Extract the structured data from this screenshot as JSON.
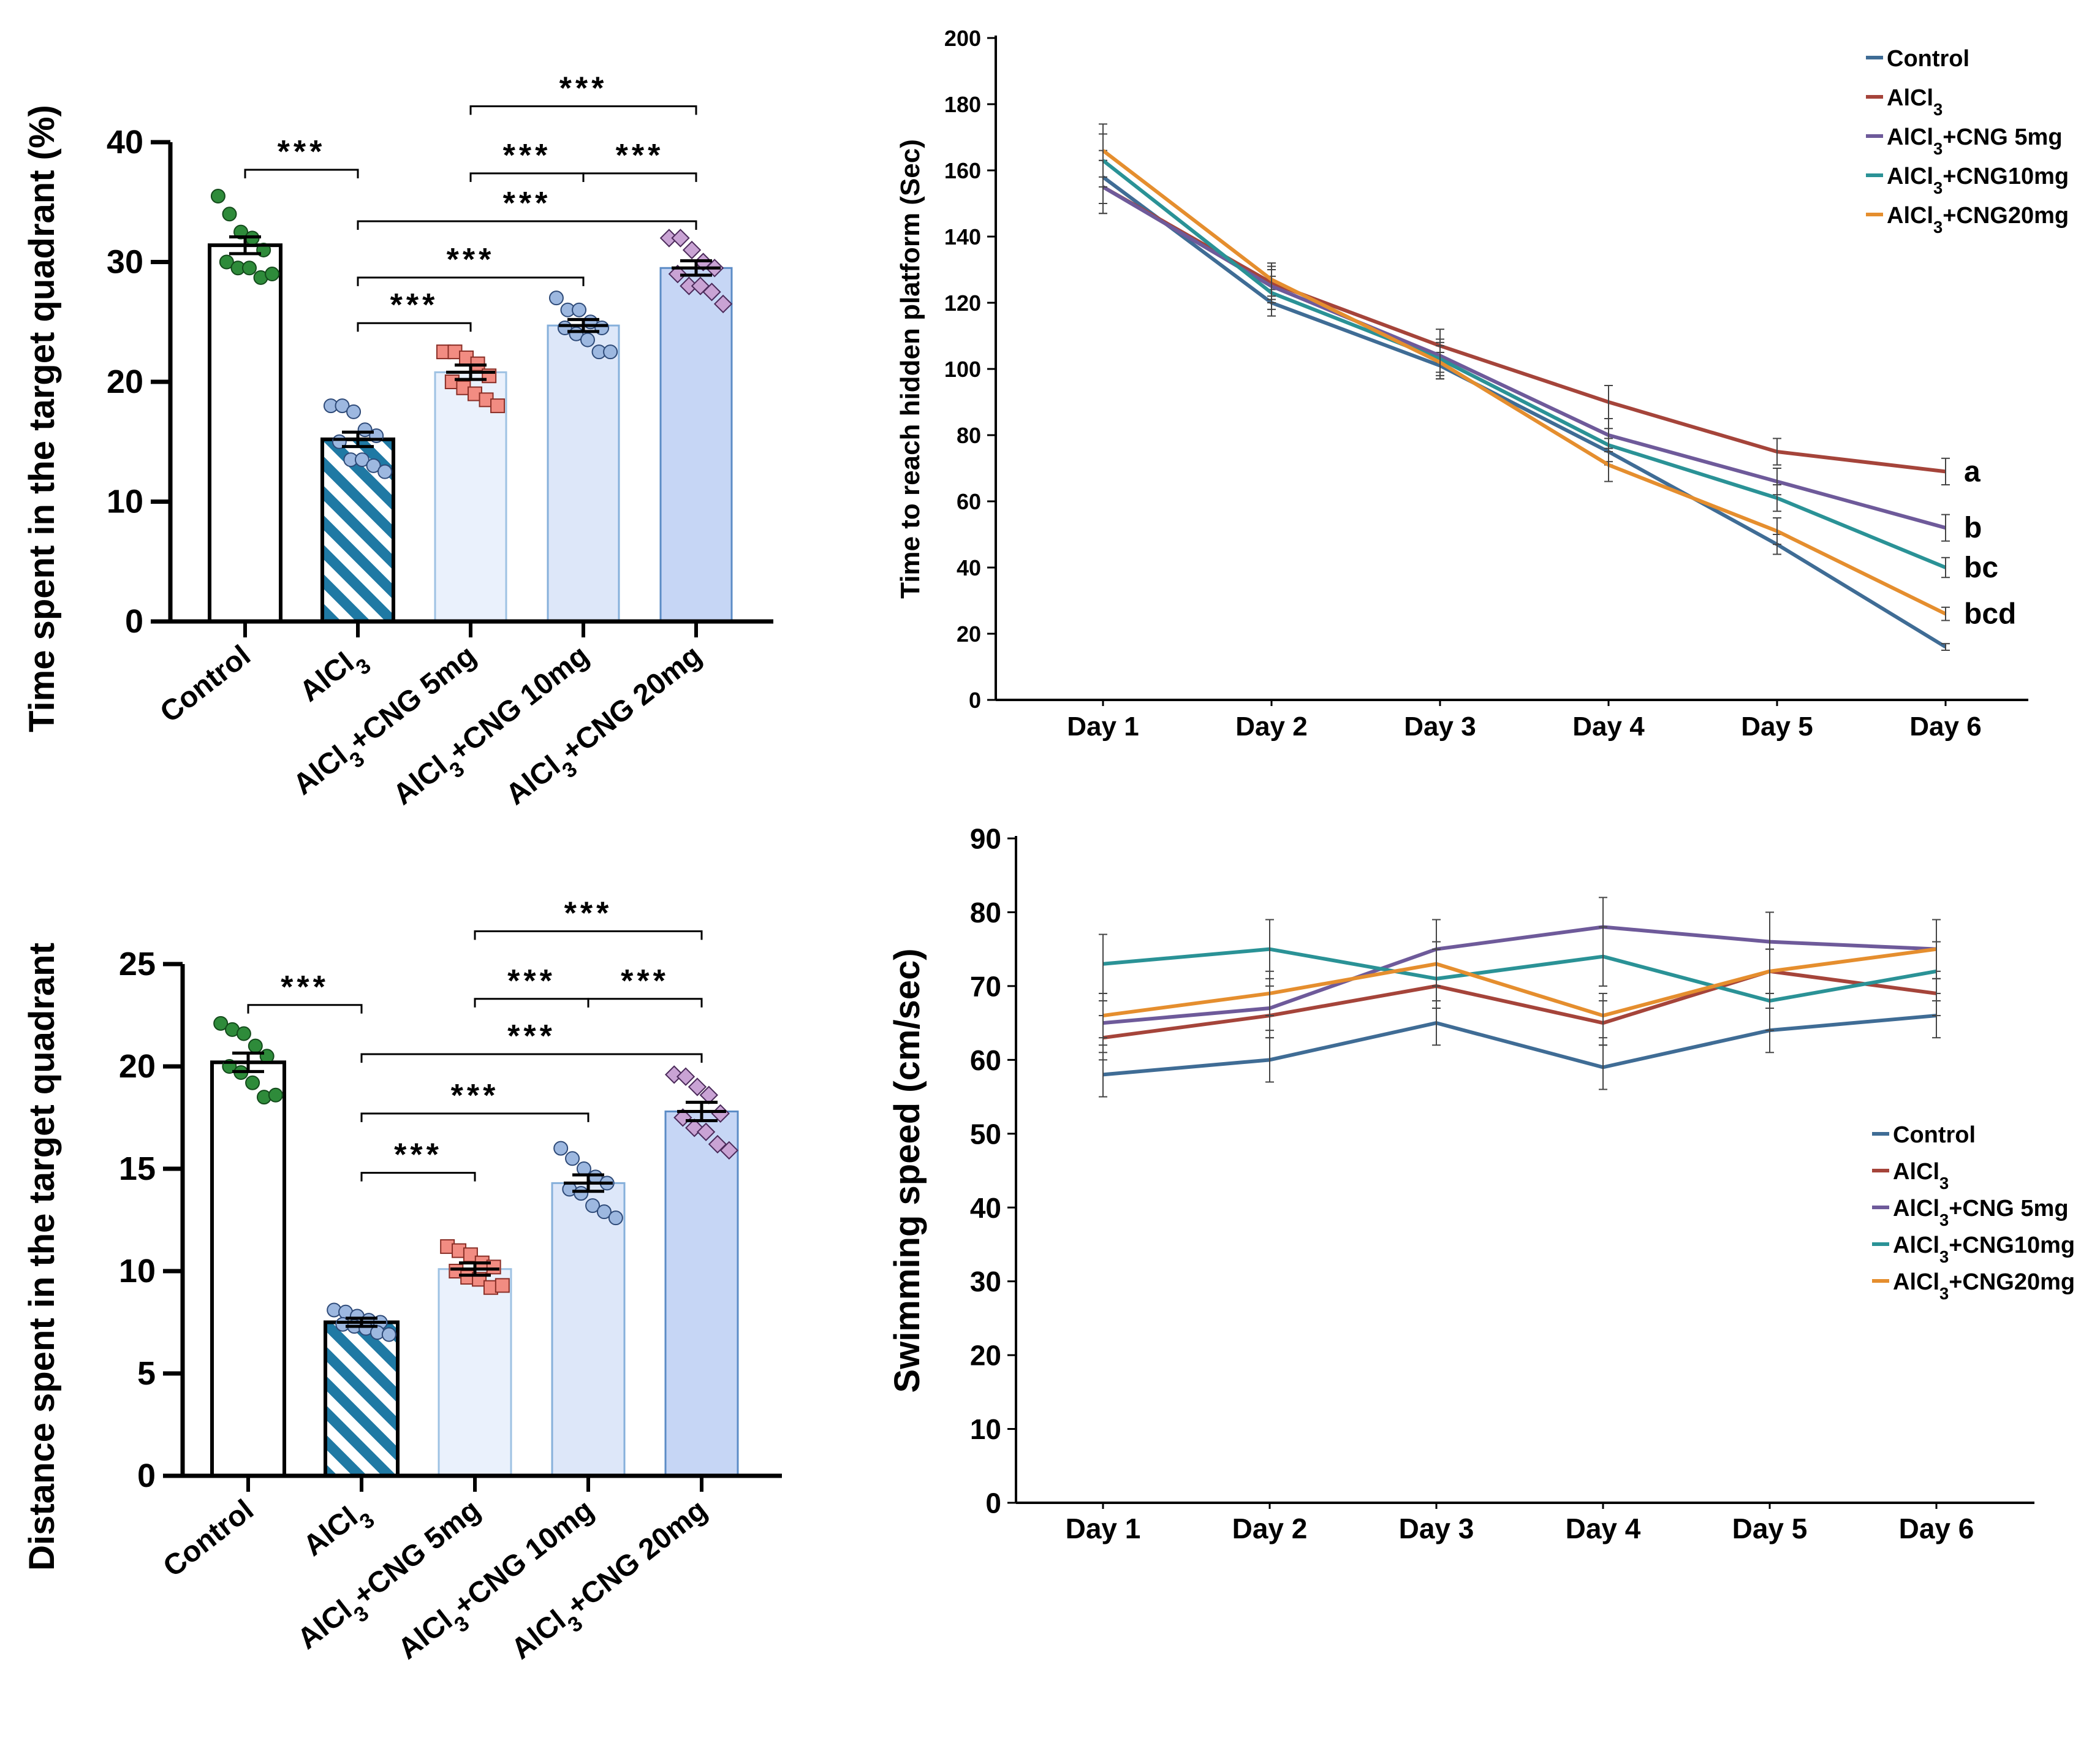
{
  "chart_data": [
    {
      "id": "a",
      "type": "bar",
      "ylabel": "Time spent in the target quadrant (%)",
      "ylim": [
        0,
        40
      ],
      "yticks": [
        "0",
        "10",
        "20",
        "30",
        "40"
      ],
      "categories": [
        "Control",
        "AlCl3",
        "AlCl3+CNG 5mg",
        "AlCl3+CNG 10mg",
        "AlCl3+CNG 20mg"
      ],
      "values": [
        31.4,
        15.2,
        20.8,
        24.7,
        29.5
      ],
      "sem": [
        0.7,
        0.6,
        0.6,
        0.5,
        0.6
      ],
      "points": [
        [
          35.5,
          34.0,
          32.5,
          32.0,
          31.0,
          30.0,
          29.5,
          29.5,
          28.7,
          29.0
        ],
        [
          18.0,
          18.0,
          17.5,
          16.0,
          15.5,
          15.0,
          13.5,
          13.5,
          13.0,
          12.5
        ],
        [
          22.5,
          22.5,
          22.0,
          21.5,
          20.5,
          20.0,
          19.5,
          19.0,
          18.5,
          18.0
        ],
        [
          27.0,
          26.0,
          26.0,
          25.0,
          24.5,
          24.5,
          24.0,
          23.5,
          22.5,
          22.5
        ],
        [
          32.0,
          32.0,
          31.0,
          30.0,
          29.5,
          29.0,
          28.0,
          28.0,
          27.5,
          26.5
        ]
      ],
      "significance": [
        {
          "from": 0,
          "to": 1,
          "y": 37.7,
          "label": "***"
        },
        {
          "from": 1,
          "to": 2,
          "y": 24.9,
          "label": "***"
        },
        {
          "from": 1,
          "to": 3,
          "y": 28.7,
          "label": "***"
        },
        {
          "from": 1,
          "to": 4,
          "y": 33.4,
          "label": "***"
        },
        {
          "from": 2,
          "to": 3,
          "y": 37.4,
          "label": "***"
        },
        {
          "from": 3,
          "to": 4,
          "y": 37.4,
          "label": "***"
        },
        {
          "from": 2,
          "to": 4,
          "y": 43.0,
          "label": "***"
        }
      ]
    },
    {
      "id": "b",
      "type": "line",
      "ylabel": "Time to reach hidden platform (Sec)",
      "ylim": [
        0,
        200
      ],
      "yticks": [
        "0",
        "20",
        "40",
        "60",
        "80",
        "100",
        "120",
        "140",
        "160",
        "180",
        "200"
      ],
      "categories": [
        "Day 1",
        "Day 2",
        "Day 3",
        "Day 4",
        "Day 5",
        "Day 6"
      ],
      "series": [
        {
          "name": "Control",
          "color": "#3F6C95",
          "values": [
            158,
            120,
            101,
            75,
            47,
            16
          ],
          "err": [
            8,
            4,
            4,
            4,
            3,
            1
          ]
        },
        {
          "name": "AlCl3",
          "color": "#A5443A",
          "values": [
            155,
            126,
            107,
            90,
            75,
            69
          ],
          "err": [
            8,
            5,
            5,
            5,
            4,
            4
          ]
        },
        {
          "name": "AlCl3+CNG 5mg",
          "color": "#6E5A9A",
          "values": [
            155,
            125,
            104,
            80,
            66,
            52
          ],
          "err": [
            8,
            5,
            5,
            5,
            4,
            4
          ]
        },
        {
          "name": "AlCl3+CNG10mg",
          "color": "#2A9296",
          "values": [
            163,
            123,
            103,
            77,
            61,
            40
          ],
          "err": [
            8,
            5,
            5,
            5,
            4,
            3
          ]
        },
        {
          "name": "AlCl3+CNG20mg",
          "color": "#E58E2E",
          "values": [
            166,
            127,
            102,
            71,
            51,
            26
          ],
          "err": [
            8,
            5,
            5,
            5,
            4,
            2
          ]
        }
      ],
      "end_labels": [
        "a",
        "b",
        "bc",
        "bcd"
      ],
      "legend": "top-right"
    },
    {
      "id": "c",
      "type": "bar",
      "ylabel": "Distance spent in the target quadrant",
      "ylim": [
        0,
        25
      ],
      "yticks": [
        "0",
        "5",
        "10",
        "15",
        "20",
        "25"
      ],
      "categories": [
        "Control",
        "AlCl3",
        "AlCl3+CNG 5mg",
        "AlCl3+CNG 10mg",
        "AlCl3+CNG 20mg"
      ],
      "values": [
        20.2,
        7.5,
        10.1,
        14.3,
        17.8
      ],
      "sem": [
        0.45,
        0.2,
        0.3,
        0.4,
        0.45
      ],
      "points": [
        [
          22.1,
          21.8,
          21.6,
          21.0,
          20.5,
          20.0,
          19.7,
          19.2,
          18.5,
          18.6
        ],
        [
          8.1,
          8.0,
          7.8,
          7.6,
          7.5,
          7.4,
          7.3,
          7.2,
          7.0,
          6.9
        ],
        [
          11.2,
          11.0,
          10.8,
          10.4,
          10.2,
          10.0,
          9.7,
          9.6,
          9.2,
          9.3
        ],
        [
          16.0,
          15.5,
          15.0,
          14.6,
          14.3,
          14.0,
          13.8,
          13.2,
          12.9,
          12.6
        ],
        [
          19.6,
          19.5,
          19.0,
          18.6,
          17.7,
          17.5,
          17.0,
          16.8,
          16.2,
          15.9
        ]
      ],
      "significance": [
        {
          "from": 0,
          "to": 1,
          "y": 23.0,
          "label": "***"
        },
        {
          "from": 1,
          "to": 2,
          "y": 14.8,
          "label": "***"
        },
        {
          "from": 1,
          "to": 3,
          "y": 17.7,
          "label": "***"
        },
        {
          "from": 1,
          "to": 4,
          "y": 20.6,
          "label": "***"
        },
        {
          "from": 2,
          "to": 3,
          "y": 23.3,
          "label": "***"
        },
        {
          "from": 3,
          "to": 4,
          "y": 23.3,
          "label": "***"
        },
        {
          "from": 2,
          "to": 4,
          "y": 26.6,
          "label": "***"
        }
      ]
    },
    {
      "id": "d",
      "type": "line",
      "ylabel": "Swimming speed (cm/sec)",
      "ylim": [
        0,
        90
      ],
      "yticks": [
        "0",
        "10",
        "20",
        "30",
        "40",
        "50",
        "60",
        "70",
        "80",
        "90"
      ],
      "categories": [
        "Day 1",
        "Day 2",
        "Day 3",
        "Day 4",
        "Day 5",
        "Day 6"
      ],
      "series": [
        {
          "name": "Control",
          "color": "#3F6C95",
          "values": [
            58,
            60,
            65,
            59,
            64,
            66
          ],
          "err": [
            3,
            3,
            3,
            3,
            3,
            3
          ]
        },
        {
          "name": "AlCl3",
          "color": "#A5443A",
          "values": [
            63,
            66,
            70,
            65,
            72,
            69
          ],
          "err": [
            3,
            3,
            3,
            3,
            3,
            3
          ]
        },
        {
          "name": "AlCl3+CNG 5mg",
          "color": "#6E5A9A",
          "values": [
            65,
            67,
            75,
            78,
            76,
            75
          ],
          "err": [
            3,
            3,
            4,
            4,
            4,
            4
          ]
        },
        {
          "name": "AlCl3+CNG10mg",
          "color": "#2A9296",
          "values": [
            73,
            75,
            71,
            74,
            68,
            72
          ],
          "err": [
            4,
            4,
            4,
            4,
            4,
            4
          ]
        },
        {
          "name": "AlCl3+CNG20mg",
          "color": "#E58E2E",
          "values": [
            66,
            69,
            73,
            66,
            72,
            75
          ],
          "err": [
            3,
            3,
            3,
            3,
            3,
            4
          ]
        }
      ],
      "legend": "right"
    }
  ]
}
